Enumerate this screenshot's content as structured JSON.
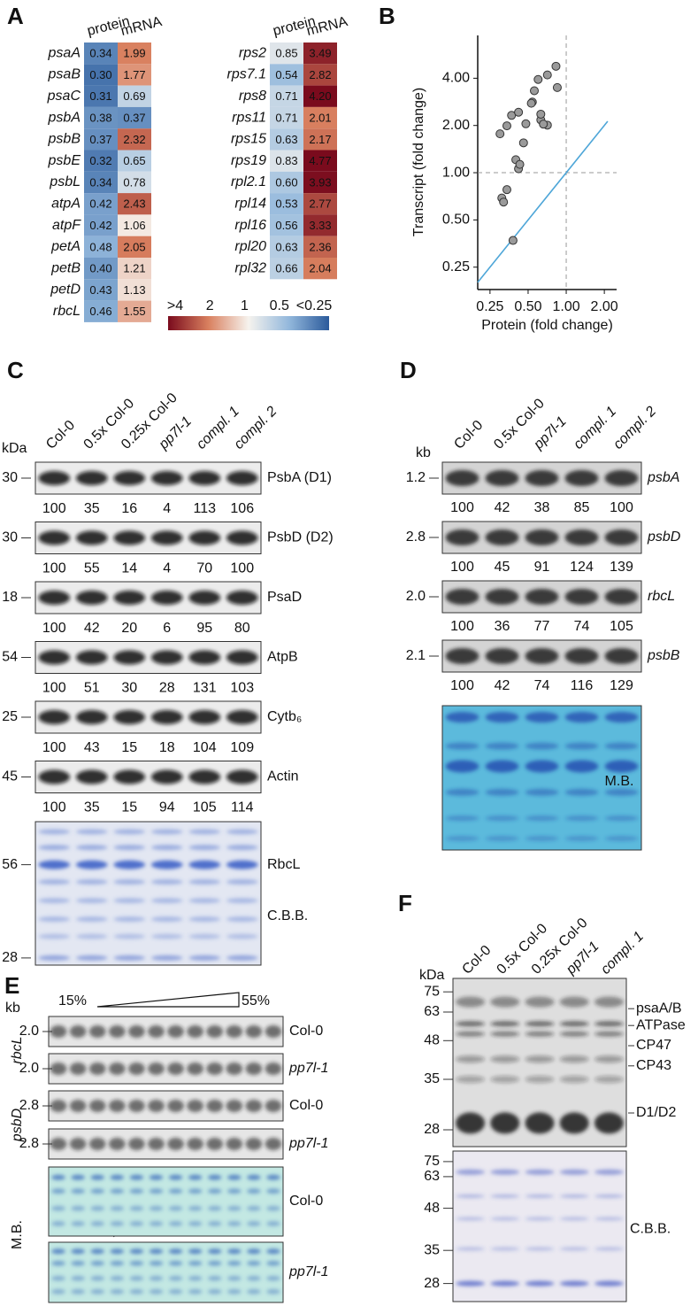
{
  "chart_data": [
    {
      "type": "heatmap",
      "panel": "A",
      "color_range": [
        0.25,
        4
      ],
      "colorbar": {
        "labels": [
          ">4",
          "2",
          "1",
          "0.5",
          "<0.25"
        ],
        "colors": [
          "#7a0b1d",
          "#d9805f",
          "#f6f3ee",
          "#93b8dc",
          "#2b5a9b"
        ]
      },
      "groups": [
        {
          "genes": [
            "psaA",
            "psaB",
            "psaC",
            "psbA",
            "psbB",
            "psbE",
            "psbL",
            "atpA",
            "atpF",
            "petA",
            "petB",
            "petD",
            "rbcL"
          ],
          "series": [
            {
              "name": "protein",
              "values": [
                0.34,
                0.3,
                0.31,
                0.38,
                0.37,
                0.32,
                0.34,
                0.42,
                0.42,
                0.48,
                0.4,
                0.43,
                0.46
              ],
              "value_labels": [
                "0.34",
                "0.30",
                "0.31",
                "0.38",
                "0.37",
                "0.32",
                "0.34",
                "0.42",
                "0.42",
                "0.48",
                "0.40",
                "0.43",
                "0.46"
              ]
            },
            {
              "name": "mRNA",
              "values": [
                1.99,
                1.77,
                0.69,
                0.37,
                2.32,
                0.65,
                0.78,
                2.43,
                1.06,
                2.05,
                1.21,
                1.13,
                1.55
              ],
              "value_labels": [
                "1.99",
                "1.77",
                "0.69",
                "0.37",
                "2.32",
                "0.65",
                "0.78",
                "2.43",
                "1.06",
                "2.05",
                "1.21",
                "1.13",
                "1.55"
              ]
            }
          ]
        },
        {
          "genes": [
            "rps2",
            "rps7.1",
            "rps8",
            "rps11",
            "rps15",
            "rps19",
            "rpl2.1",
            "rpl14",
            "rpl16",
            "rpl20",
            "rpl32"
          ],
          "series": [
            {
              "name": "protein",
              "values": [
                0.85,
                0.54,
                0.71,
                0.71,
                0.63,
                0.83,
                0.6,
                0.53,
                0.56,
                0.63,
                0.66
              ],
              "value_labels": [
                "0.85",
                "0.54",
                "0.71",
                "0.71",
                "0.63",
                "0.83",
                "0.60",
                "0.53",
                "0.56",
                "0.63",
                "0.66"
              ]
            },
            {
              "name": "mRNA",
              "values": [
                3.49,
                2.82,
                4.2,
                2.01,
                2.17,
                4.77,
                3.93,
                2.77,
                3.33,
                2.36,
                2.04
              ],
              "value_labels": [
                "3.49",
                "2.82",
                "4.20",
                "2.01",
                "2.17",
                "4.77",
                "3.93",
                "2.77",
                "3.33",
                "2.36",
                "2.04"
              ]
            }
          ]
        }
      ]
    },
    {
      "type": "scatter",
      "panel": "B",
      "x_label": "Protein (fold change)",
      "y_label": "Transcript (fold change)",
      "log_scale": true,
      "xlim": [
        0.2,
        2.5
      ],
      "ylim": [
        0.18,
        7.5
      ],
      "xticks": [
        0.25,
        {
          "value": 0.5,
          "label": "0.50"
        },
        {
          "value": 1,
          "label": "1.00"
        },
        {
          "value": 2,
          "label": "2.00"
        }
      ],
      "yticks": [
        0.25,
        {
          "value": 0.5,
          "label": "0.50"
        },
        {
          "value": 1,
          "label": "1.00"
        },
        {
          "value": 2,
          "label": "2.00"
        },
        {
          "value": 4,
          "label": "4.00"
        }
      ],
      "reference_value": 1,
      "identity_line_color": "#4ea6d8",
      "point_color": "#9a9a9a"
    }
  ],
  "blots": {
    "C": {
      "label": "C",
      "unit": "kDa",
      "lanes": [
        {
          "text": "Col-0"
        },
        {
          "text": "0.5x Col-0"
        },
        {
          "text": "0.25x Col-0"
        },
        {
          "text": "pp7l-1",
          "italic": true
        },
        {
          "text": "compl. 1",
          "italic": true
        },
        {
          "text": "compl. 2",
          "italic": true
        }
      ],
      "blots": [
        {
          "marker": "30",
          "name": "PsbA (D1)",
          "values": [
            100,
            35,
            16,
            4,
            113,
            106
          ]
        },
        {
          "marker": "30",
          "name": "PsbD (D2)",
          "values": [
            100,
            55,
            14,
            4,
            70,
            100
          ]
        },
        {
          "marker": "18",
          "name": "PsaD",
          "values": [
            100,
            42,
            20,
            6,
            95,
            80
          ]
        },
        {
          "marker": "54",
          "name": "AtpB",
          "values": [
            100,
            51,
            30,
            28,
            131,
            103
          ]
        },
        {
          "marker": "25",
          "name": "Cytb₆",
          "values": [
            100,
            43,
            15,
            18,
            104,
            109
          ]
        },
        {
          "marker": "45",
          "name": "Actin",
          "values": [
            100,
            35,
            15,
            94,
            105,
            114
          ]
        }
      ],
      "stain": {
        "markers": [
          "56",
          "28"
        ],
        "band": "RbcL",
        "name": "C.B.B."
      }
    },
    "D": {
      "label": "D",
      "unit": "kb",
      "italic_names": true,
      "lanes": [
        {
          "text": "Col-0"
        },
        {
          "text": "0.5x Col-0"
        },
        {
          "text": "pp7l-1",
          "italic": true
        },
        {
          "text": "compl. 1",
          "italic": true
        },
        {
          "text": "compl. 2",
          "italic": true
        }
      ],
      "blots": [
        {
          "marker": "1.2",
          "name": "psbA",
          "values": [
            100,
            42,
            38,
            85,
            100
          ]
        },
        {
          "marker": "2.8",
          "name": "psbD",
          "values": [
            100,
            45,
            91,
            124,
            139
          ]
        },
        {
          "marker": "2.0",
          "name": "rbcL",
          "values": [
            100,
            36,
            77,
            74,
            105
          ]
        },
        {
          "marker": "2.1",
          "name": "psbB",
          "values": [
            100,
            42,
            74,
            116,
            129
          ]
        }
      ],
      "stain": {
        "name": "M.B."
      }
    },
    "E": {
      "label": "E",
      "unit": "kb",
      "gradient": [
        "15%",
        "55%"
      ],
      "groups": [
        {
          "name": "rbcL",
          "italic": true,
          "blots": [
            {
              "marker": "2.0",
              "sample": "Col-0"
            },
            {
              "marker": "2.0",
              "sample": "pp7l-1",
              "italic": true
            }
          ]
        },
        {
          "name": "psbD",
          "italic": true,
          "blots": [
            {
              "marker": "2.8",
              "sample": "Col-0"
            },
            {
              "marker": "2.8",
              "sample": "pp7l-1",
              "italic": true
            }
          ]
        },
        {
          "name": "M.B.",
          "blots": [
            {
              "sample": "Col-0"
            },
            {
              "sample": "pp7l-1",
              "italic": true
            }
          ]
        }
      ]
    },
    "F": {
      "label": "F",
      "unit": "kDa",
      "lanes": [
        {
          "text": "Col-0"
        },
        {
          "text": "0.5x Col-0"
        },
        {
          "text": "0.25x Col-0"
        },
        {
          "text": "pp7l-1",
          "italic": true
        },
        {
          "text": "compl. 1",
          "italic": true
        }
      ],
      "markers": [
        "75",
        "63",
        "48",
        "35",
        "28"
      ],
      "bands": [
        "psaA/B",
        "ATPase",
        "CP47",
        "CP43",
        "D1/D2"
      ],
      "stain": {
        "markers": [
          "75",
          "63",
          "48",
          "35",
          "28"
        ],
        "name": "C.B.B."
      }
    }
  }
}
